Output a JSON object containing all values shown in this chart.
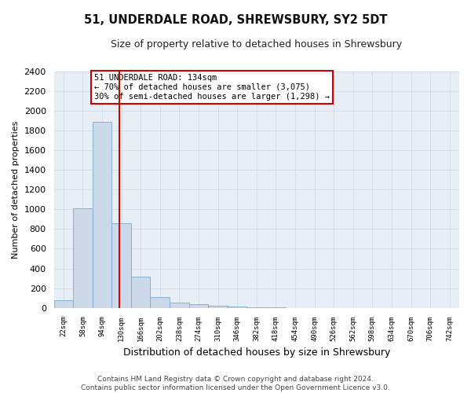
{
  "title": "51, UNDERDALE ROAD, SHREWSBURY, SY2 5DT",
  "subtitle": "Size of property relative to detached houses in Shrewsbury",
  "xlabel": "Distribution of detached houses by size in Shrewsbury",
  "ylabel": "Number of detached properties",
  "bar_color": "#ccd9e8",
  "bar_edge_color": "#7aaaca",
  "categories": [
    "22sqm",
    "58sqm",
    "94sqm",
    "130sqm",
    "166sqm",
    "202sqm",
    "238sqm",
    "274sqm",
    "310sqm",
    "346sqm",
    "382sqm",
    "418sqm",
    "454sqm",
    "490sqm",
    "526sqm",
    "562sqm",
    "598sqm",
    "634sqm",
    "670sqm",
    "706sqm",
    "742sqm"
  ],
  "values": [
    80,
    1010,
    1890,
    860,
    315,
    110,
    50,
    40,
    25,
    15,
    5,
    2,
    0,
    0,
    0,
    0,
    0,
    0,
    0,
    0,
    0
  ],
  "ylim": [
    0,
    2400
  ],
  "yticks": [
    0,
    200,
    400,
    600,
    800,
    1000,
    1200,
    1400,
    1600,
    1800,
    2000,
    2200,
    2400
  ],
  "vline_color": "#cc0000",
  "vline_x_index": 2.88,
  "annotation_text": "51 UNDERDALE ROAD: 134sqm\n← 70% of detached houses are smaller (3,075)\n30% of semi-detached houses are larger (1,298) →",
  "annotation_box_facecolor": "#ffffff",
  "annotation_box_edgecolor": "#cc0000",
  "footer": "Contains HM Land Registry data © Crown copyright and database right 2024.\nContains public sector information licensed under the Open Government Licence v3.0.",
  "grid_color": "#d4dde8",
  "background_color": "#e8eef5",
  "title_fontsize": 10.5,
  "subtitle_fontsize": 9,
  "ylabel_fontsize": 8,
  "xlabel_fontsize": 9
}
